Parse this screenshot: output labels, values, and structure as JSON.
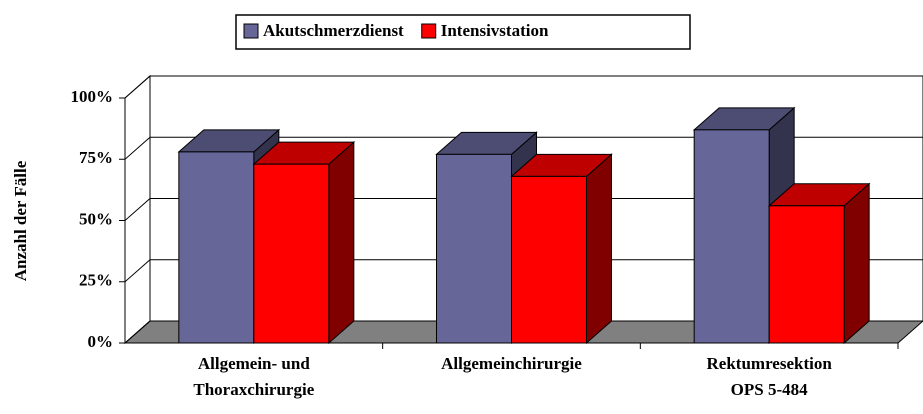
{
  "chart_data": {
    "type": "bar3d",
    "y_label": "Anzahl der Fälle",
    "categories": [
      [
        "Allgemein- und",
        "Thoraxchirurgie"
      ],
      [
        "Allgemeinchirurgie"
      ],
      [
        "Rektumresektion",
        "OPS 5-484"
      ]
    ],
    "series": [
      {
        "name": "Akutschmerzdienst",
        "color": "#666699",
        "values": [
          78,
          77,
          87
        ]
      },
      {
        "name": "Intensivstation",
        "color": "#ff0000",
        "values": [
          73,
          68,
          56
        ]
      }
    ],
    "ylim": [
      0,
      100
    ],
    "yticks": [
      {
        "value": 0,
        "label": "0%"
      },
      {
        "value": 25,
        "label": "25%"
      },
      {
        "value": 50,
        "label": "50%"
      },
      {
        "value": 75,
        "label": "75%"
      },
      {
        "value": 100,
        "label": "100%"
      }
    ],
    "grid": true,
    "legend": "top"
  }
}
